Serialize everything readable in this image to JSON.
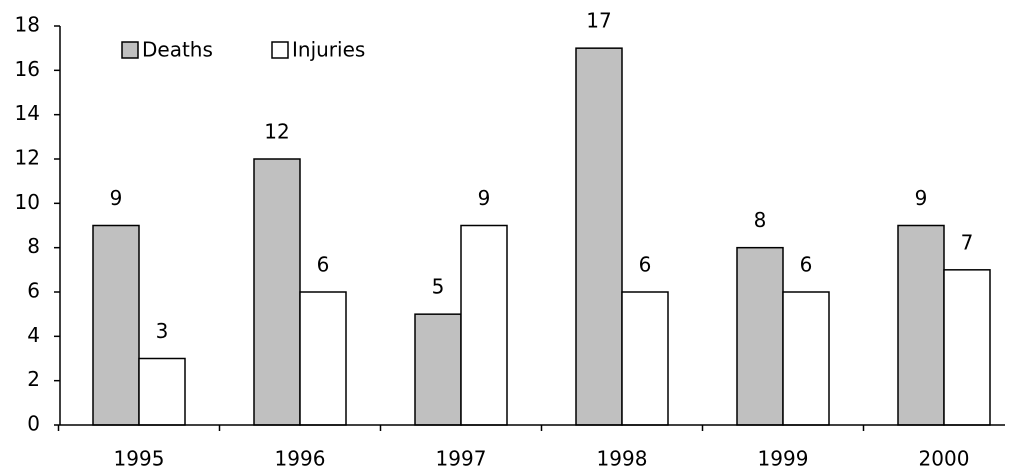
{
  "chart_data": {
    "type": "bar",
    "categories": [
      "1995",
      "1996",
      "1997",
      "1998",
      "1999",
      "2000"
    ],
    "series": [
      {
        "name": "Deaths",
        "color": "#c0c0c0",
        "values": [
          9,
          12,
          5,
          17,
          8,
          9
        ]
      },
      {
        "name": "Injuries",
        "color": "#ffffff",
        "values": [
          3,
          6,
          9,
          6,
          6,
          7
        ]
      }
    ],
    "ylim": [
      0,
      18
    ],
    "yticks": [
      0,
      2,
      4,
      6,
      8,
      10,
      12,
      14,
      16,
      18
    ],
    "legend": "top-left"
  }
}
